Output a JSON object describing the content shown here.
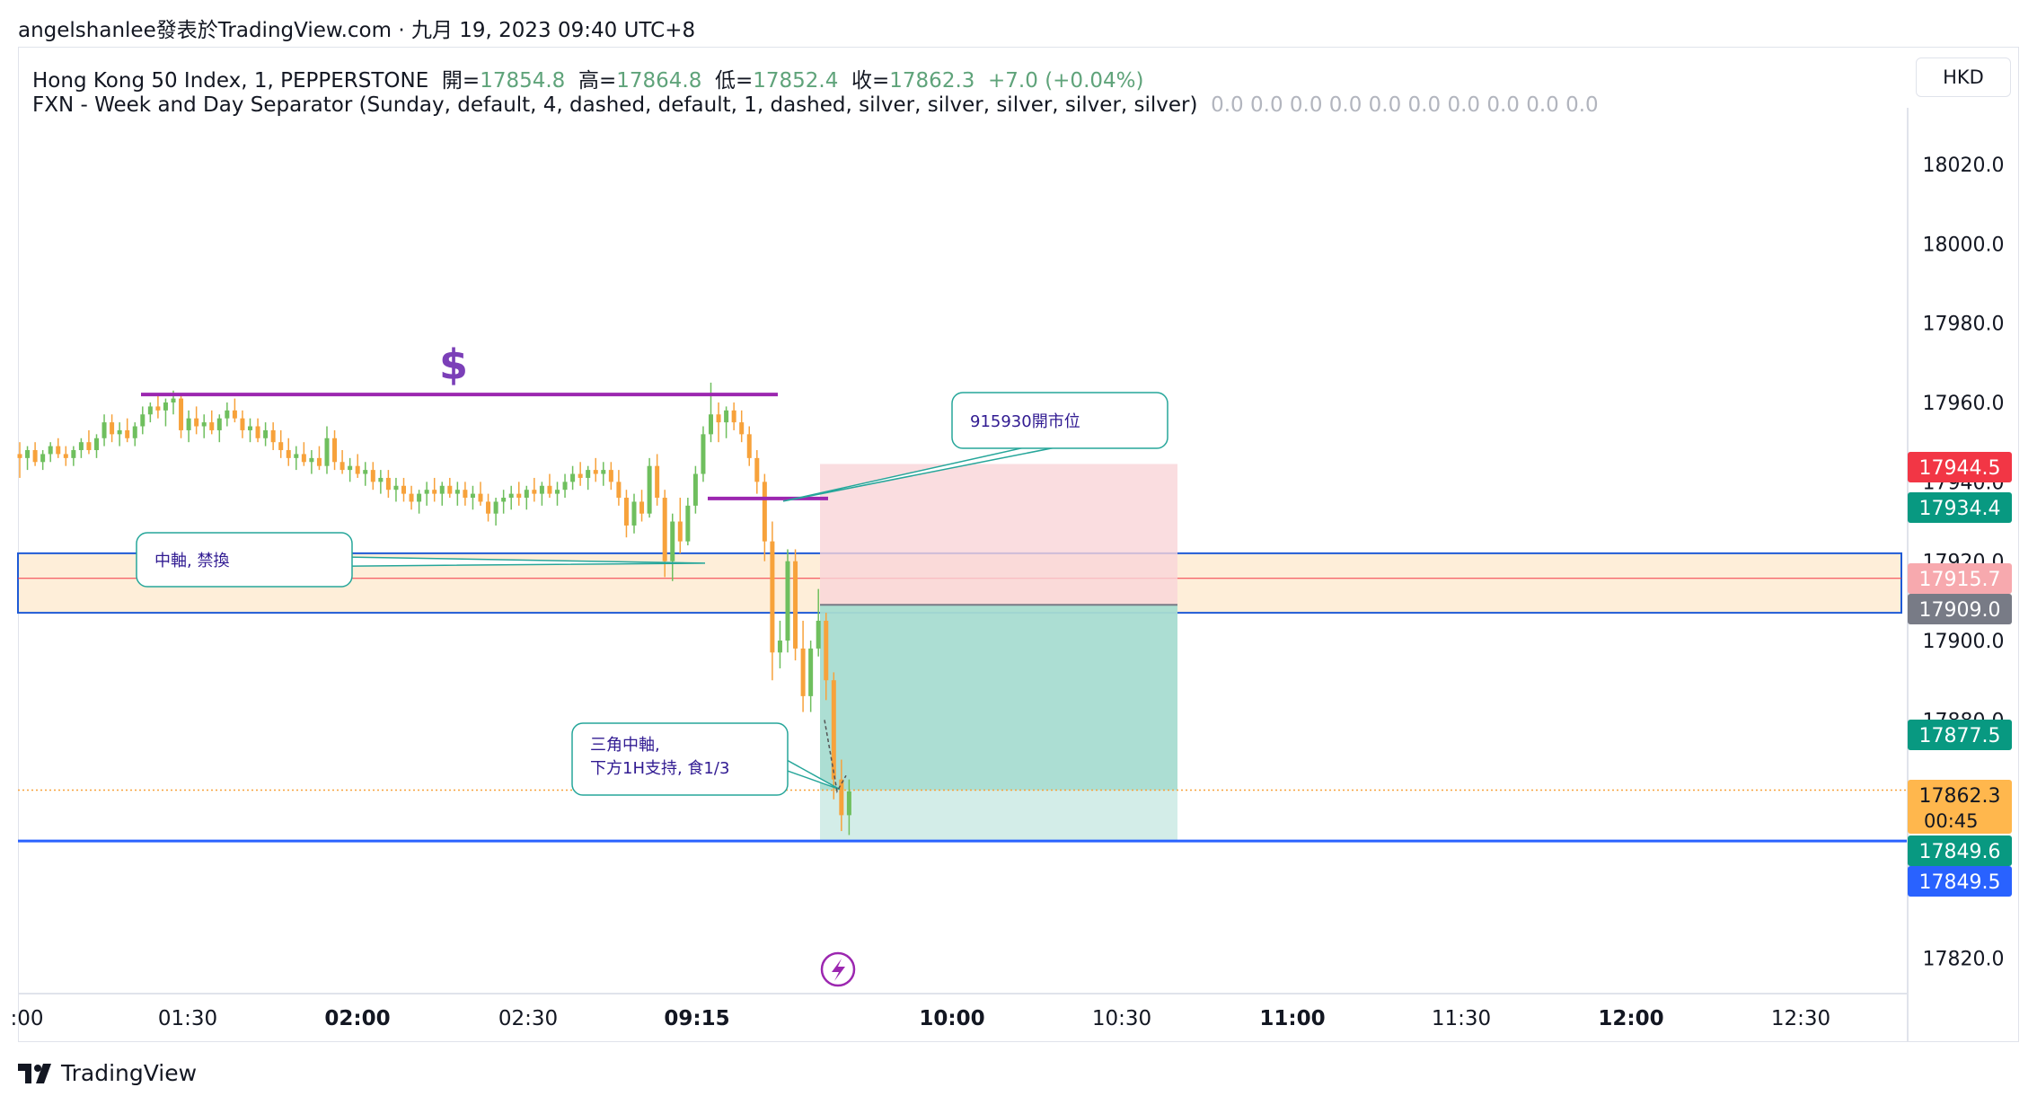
{
  "header": {
    "publish_line": "angelshanlee發表於TradingView.com · 九月 19, 2023 09:40 UTC+8"
  },
  "legend": {
    "symbol_label": "Hong Kong 50 Index, 1, PEPPERSTONE",
    "open_label": "開=",
    "open_value": "17854.8",
    "high_label": "高=",
    "high_value": "17864.8",
    "low_label": "低=",
    "low_value": "17852.4",
    "close_label": "收=",
    "close_value": "17862.3",
    "change": "+7.0 (+0.04%)",
    "indicator_label": "FXN - Week and Day Separator (Sunday, default, 4, dashed, default, 1, dashed, silver, silver, silver, silver, silver)",
    "indicator_values": "0.0  0.0  0.0  0.0  0.0  0.0  0.0  0.0  0.0  0.0"
  },
  "currency": "HKD",
  "brand": "TradingView",
  "chart_data": {
    "type": "candlestick",
    "y_ticks": [
      "18020.0",
      "18000.0",
      "17980.0",
      "17960.0",
      "17940.0",
      "17920.0",
      "17900.0",
      "17880.0",
      "17820.0"
    ],
    "x_ticks": [
      {
        "label": ":00",
        "bold": false
      },
      {
        "label": "01:30",
        "bold": false
      },
      {
        "label": "02:00",
        "bold": true
      },
      {
        "label": "02:30",
        "bold": false
      },
      {
        "label": "09:15",
        "bold": true
      },
      {
        "label": "10:00",
        "bold": true
      },
      {
        "label": "10:30",
        "bold": false
      },
      {
        "label": "11:00",
        "bold": true
      },
      {
        "label": "11:30",
        "bold": false
      },
      {
        "label": "12:00",
        "bold": true
      },
      {
        "label": "12:30",
        "bold": false
      }
    ],
    "price_labels": [
      {
        "value": "17944.5",
        "color": "#f23645",
        "text_color": "#ffffff"
      },
      {
        "value": "17934.4",
        "color": "#089981",
        "text_color": "#ffffff"
      },
      {
        "value": "17915.7",
        "color": "#f7a9ae",
        "text_color": "#ffffff"
      },
      {
        "value": "17909.0",
        "color": "#787b86",
        "text_color": "#ffffff"
      },
      {
        "value": "17877.5",
        "color": "#089981",
        "text_color": "#ffffff"
      },
      {
        "value": "17862.3",
        "color": "#ffb74d",
        "text_color": "#131722"
      },
      {
        "value": "17849.6",
        "color": "#089981",
        "text_color": "#ffffff"
      },
      {
        "value": "17849.5",
        "color": "#2962ff",
        "text_color": "#ffffff"
      }
    ],
    "countdown": "00:45",
    "annotations": [
      {
        "text": "915930開市位"
      },
      {
        "text": "中軸, 禁換"
      },
      {
        "text": "三角中軸,"
      },
      {
        "text": "下方1H支持, 食1/3"
      }
    ],
    "dollar_marker": "$",
    "levels": {
      "resistance": 17962,
      "open_915930": 17935.8,
      "zone_top": 17922,
      "zone_bottom": 17907,
      "zone_mid": 17915.7,
      "support": 17849.5,
      "current": 17862.3,
      "short_entry": 17909,
      "short_stop": 17944.5,
      "short_target": 17849.6
    },
    "colors": {
      "up": "#6fbf5e",
      "down": "#f7a23b",
      "resistance_line": "#9c27b0",
      "zone_fill": "#fde8cc",
      "zone_border": "#1e5ad6",
      "support_line": "#2962ff",
      "stop_fill": "#f9d5d8",
      "target_fill": "#a8dcd1",
      "annotation_border": "#26a69a",
      "annotation_text": "#311b92"
    },
    "candles": [
      {
        "o": 17947,
        "h": 17950,
        "l": 17941,
        "c": 17946
      },
      {
        "o": 17946,
        "h": 17949,
        "l": 17943,
        "c": 17948
      },
      {
        "o": 17948,
        "h": 17950,
        "l": 17944,
        "c": 17945
      },
      {
        "o": 17945,
        "h": 17948,
        "l": 17943,
        "c": 17947
      },
      {
        "o": 17947,
        "h": 17950,
        "l": 17945,
        "c": 17949
      },
      {
        "o": 17949,
        "h": 17951,
        "l": 17946,
        "c": 17947
      },
      {
        "o": 17947,
        "h": 17949,
        "l": 17944,
        "c": 17946
      },
      {
        "o": 17946,
        "h": 17949,
        "l": 17944,
        "c": 17948
      },
      {
        "o": 17948,
        "h": 17951,
        "l": 17946,
        "c": 17950
      },
      {
        "o": 17950,
        "h": 17953,
        "l": 17947,
        "c": 17948
      },
      {
        "o": 17948,
        "h": 17952,
        "l": 17946,
        "c": 17951
      },
      {
        "o": 17951,
        "h": 17957,
        "l": 17949,
        "c": 17955
      },
      {
        "o": 17955,
        "h": 17957,
        "l": 17950,
        "c": 17952
      },
      {
        "o": 17952,
        "h": 17955,
        "l": 17949,
        "c": 17953
      },
      {
        "o": 17953,
        "h": 17956,
        "l": 17950,
        "c": 17951
      },
      {
        "o": 17951,
        "h": 17955,
        "l": 17949,
        "c": 17954
      },
      {
        "o": 17954,
        "h": 17959,
        "l": 17952,
        "c": 17957
      },
      {
        "o": 17957,
        "h": 17960,
        "l": 17955,
        "c": 17959
      },
      {
        "o": 17959,
        "h": 17962,
        "l": 17956,
        "c": 17958
      },
      {
        "o": 17958,
        "h": 17961,
        "l": 17954,
        "c": 17960
      },
      {
        "o": 17960,
        "h": 17963,
        "l": 17957,
        "c": 17961
      },
      {
        "o": 17961,
        "h": 17962,
        "l": 17951,
        "c": 17953
      },
      {
        "o": 17953,
        "h": 17958,
        "l": 17950,
        "c": 17956
      },
      {
        "o": 17956,
        "h": 17959,
        "l": 17952,
        "c": 17954
      },
      {
        "o": 17954,
        "h": 17957,
        "l": 17951,
        "c": 17955
      },
      {
        "o": 17955,
        "h": 17958,
        "l": 17952,
        "c": 17953
      },
      {
        "o": 17953,
        "h": 17957,
        "l": 17950,
        "c": 17956
      },
      {
        "o": 17956,
        "h": 17960,
        "l": 17954,
        "c": 17958
      },
      {
        "o": 17958,
        "h": 17961,
        "l": 17955,
        "c": 17956
      },
      {
        "o": 17956,
        "h": 17958,
        "l": 17951,
        "c": 17953
      },
      {
        "o": 17953,
        "h": 17956,
        "l": 17950,
        "c": 17954
      },
      {
        "o": 17954,
        "h": 17956,
        "l": 17950,
        "c": 17951
      },
      {
        "o": 17951,
        "h": 17955,
        "l": 17949,
        "c": 17953
      },
      {
        "o": 17953,
        "h": 17955,
        "l": 17948,
        "c": 17950
      },
      {
        "o": 17950,
        "h": 17953,
        "l": 17946,
        "c": 17948
      },
      {
        "o": 17948,
        "h": 17951,
        "l": 17944,
        "c": 17946
      },
      {
        "o": 17946,
        "h": 17949,
        "l": 17943,
        "c": 17947
      },
      {
        "o": 17947,
        "h": 17950,
        "l": 17944,
        "c": 17945
      },
      {
        "o": 17945,
        "h": 17948,
        "l": 17942,
        "c": 17946
      },
      {
        "o": 17946,
        "h": 17949,
        "l": 17943,
        "c": 17944
      },
      {
        "o": 17944,
        "h": 17954,
        "l": 17942,
        "c": 17951
      },
      {
        "o": 17951,
        "h": 17953,
        "l": 17943,
        "c": 17945
      },
      {
        "o": 17945,
        "h": 17948,
        "l": 17942,
        "c": 17943
      },
      {
        "o": 17943,
        "h": 17946,
        "l": 17940,
        "c": 17944
      },
      {
        "o": 17944,
        "h": 17947,
        "l": 17941,
        "c": 17942
      },
      {
        "o": 17942,
        "h": 17945,
        "l": 17939,
        "c": 17943
      },
      {
        "o": 17943,
        "h": 17945,
        "l": 17938,
        "c": 17940
      },
      {
        "o": 17940,
        "h": 17943,
        "l": 17937,
        "c": 17941
      },
      {
        "o": 17941,
        "h": 17943,
        "l": 17936,
        "c": 17938
      },
      {
        "o": 17938,
        "h": 17941,
        "l": 17935,
        "c": 17939
      },
      {
        "o": 17939,
        "h": 17941,
        "l": 17935,
        "c": 17937
      },
      {
        "o": 17937,
        "h": 17939,
        "l": 17933,
        "c": 17935
      },
      {
        "o": 17935,
        "h": 17938,
        "l": 17932,
        "c": 17937
      },
      {
        "o": 17937,
        "h": 17940,
        "l": 17934,
        "c": 17938
      },
      {
        "o": 17938,
        "h": 17941,
        "l": 17935,
        "c": 17937
      },
      {
        "o": 17937,
        "h": 17940,
        "l": 17934,
        "c": 17939
      },
      {
        "o": 17939,
        "h": 17941,
        "l": 17936,
        "c": 17937
      },
      {
        "o": 17937,
        "h": 17940,
        "l": 17934,
        "c": 17938
      },
      {
        "o": 17938,
        "h": 17940,
        "l": 17934,
        "c": 17936
      },
      {
        "o": 17936,
        "h": 17939,
        "l": 17933,
        "c": 17937
      },
      {
        "o": 17937,
        "h": 17940,
        "l": 17934,
        "c": 17935
      },
      {
        "o": 17935,
        "h": 17937,
        "l": 17930,
        "c": 17932
      },
      {
        "o": 17932,
        "h": 17936,
        "l": 17929,
        "c": 17935
      },
      {
        "o": 17935,
        "h": 17938,
        "l": 17932,
        "c": 17936
      },
      {
        "o": 17936,
        "h": 17939,
        "l": 17933,
        "c": 17937
      },
      {
        "o": 17937,
        "h": 17940,
        "l": 17934,
        "c": 17936
      },
      {
        "o": 17936,
        "h": 17939,
        "l": 17933,
        "c": 17938
      },
      {
        "o": 17938,
        "h": 17941,
        "l": 17935,
        "c": 17937
      },
      {
        "o": 17937,
        "h": 17940,
        "l": 17934,
        "c": 17939
      },
      {
        "o": 17939,
        "h": 17942,
        "l": 17936,
        "c": 17937
      },
      {
        "o": 17937,
        "h": 17940,
        "l": 17934,
        "c": 17938
      },
      {
        "o": 17938,
        "h": 17942,
        "l": 17936,
        "c": 17940
      },
      {
        "o": 17940,
        "h": 17944,
        "l": 17938,
        "c": 17942
      },
      {
        "o": 17942,
        "h": 17945,
        "l": 17939,
        "c": 17941
      },
      {
        "o": 17941,
        "h": 17944,
        "l": 17938,
        "c": 17943
      },
      {
        "o": 17943,
        "h": 17946,
        "l": 17940,
        "c": 17942
      },
      {
        "o": 17942,
        "h": 17945,
        "l": 17939,
        "c": 17943
      },
      {
        "o": 17943,
        "h": 17945,
        "l": 17938,
        "c": 17940
      },
      {
        "o": 17940,
        "h": 17943,
        "l": 17934,
        "c": 17936
      },
      {
        "o": 17936,
        "h": 17938,
        "l": 17926,
        "c": 17929
      },
      {
        "o": 17929,
        "h": 17937,
        "l": 17927,
        "c": 17935
      },
      {
        "o": 17935,
        "h": 17938,
        "l": 17930,
        "c": 17932
      },
      {
        "o": 17932,
        "h": 17946,
        "l": 17931,
        "c": 17944
      },
      {
        "o": 17944,
        "h": 17947,
        "l": 17934,
        "c": 17936
      },
      {
        "o": 17936,
        "h": 17938,
        "l": 17916,
        "c": 17920
      },
      {
        "o": 17920,
        "h": 17932,
        "l": 17915,
        "c": 17930
      },
      {
        "o": 17930,
        "h": 17936,
        "l": 17922,
        "c": 17925
      },
      {
        "o": 17925,
        "h": 17936,
        "l": 17924,
        "c": 17934
      },
      {
        "o": 17934,
        "h": 17944,
        "l": 17932,
        "c": 17942
      },
      {
        "o": 17942,
        "h": 17954,
        "l": 17940,
        "c": 17952
      },
      {
        "o": 17952,
        "h": 17965,
        "l": 17950,
        "c": 17957
      },
      {
        "o": 17957,
        "h": 17960,
        "l": 17950,
        "c": 17955
      },
      {
        "o": 17955,
        "h": 17959,
        "l": 17951,
        "c": 17958
      },
      {
        "o": 17958,
        "h": 17960,
        "l": 17953,
        "c": 17955
      },
      {
        "o": 17955,
        "h": 17958,
        "l": 17950,
        "c": 17952
      },
      {
        "o": 17952,
        "h": 17954,
        "l": 17944,
        "c": 17946
      },
      {
        "o": 17946,
        "h": 17948,
        "l": 17937,
        "c": 17940
      },
      {
        "o": 17940,
        "h": 17942,
        "l": 17920,
        "c": 17925
      },
      {
        "o": 17925,
        "h": 17930,
        "l": 17890,
        "c": 17897
      },
      {
        "o": 17897,
        "h": 17905,
        "l": 17893,
        "c": 17900
      },
      {
        "o": 17900,
        "h": 17923,
        "l": 17897,
        "c": 17920
      },
      {
        "o": 17920,
        "h": 17923,
        "l": 17895,
        "c": 17898
      },
      {
        "o": 17898,
        "h": 17905,
        "l": 17882,
        "c": 17886
      },
      {
        "o": 17886,
        "h": 17900,
        "l": 17882,
        "c": 17898
      },
      {
        "o": 17898,
        "h": 17913,
        "l": 17896,
        "c": 17905
      },
      {
        "o": 17905,
        "h": 17907,
        "l": 17885,
        "c": 17890
      },
      {
        "o": 17890,
        "h": 17892,
        "l": 17860,
        "c": 17865
      },
      {
        "o": 17865,
        "h": 17870,
        "l": 17852,
        "c": 17856
      },
      {
        "o": 17856,
        "h": 17865,
        "l": 17851,
        "c": 17862
      }
    ]
  }
}
